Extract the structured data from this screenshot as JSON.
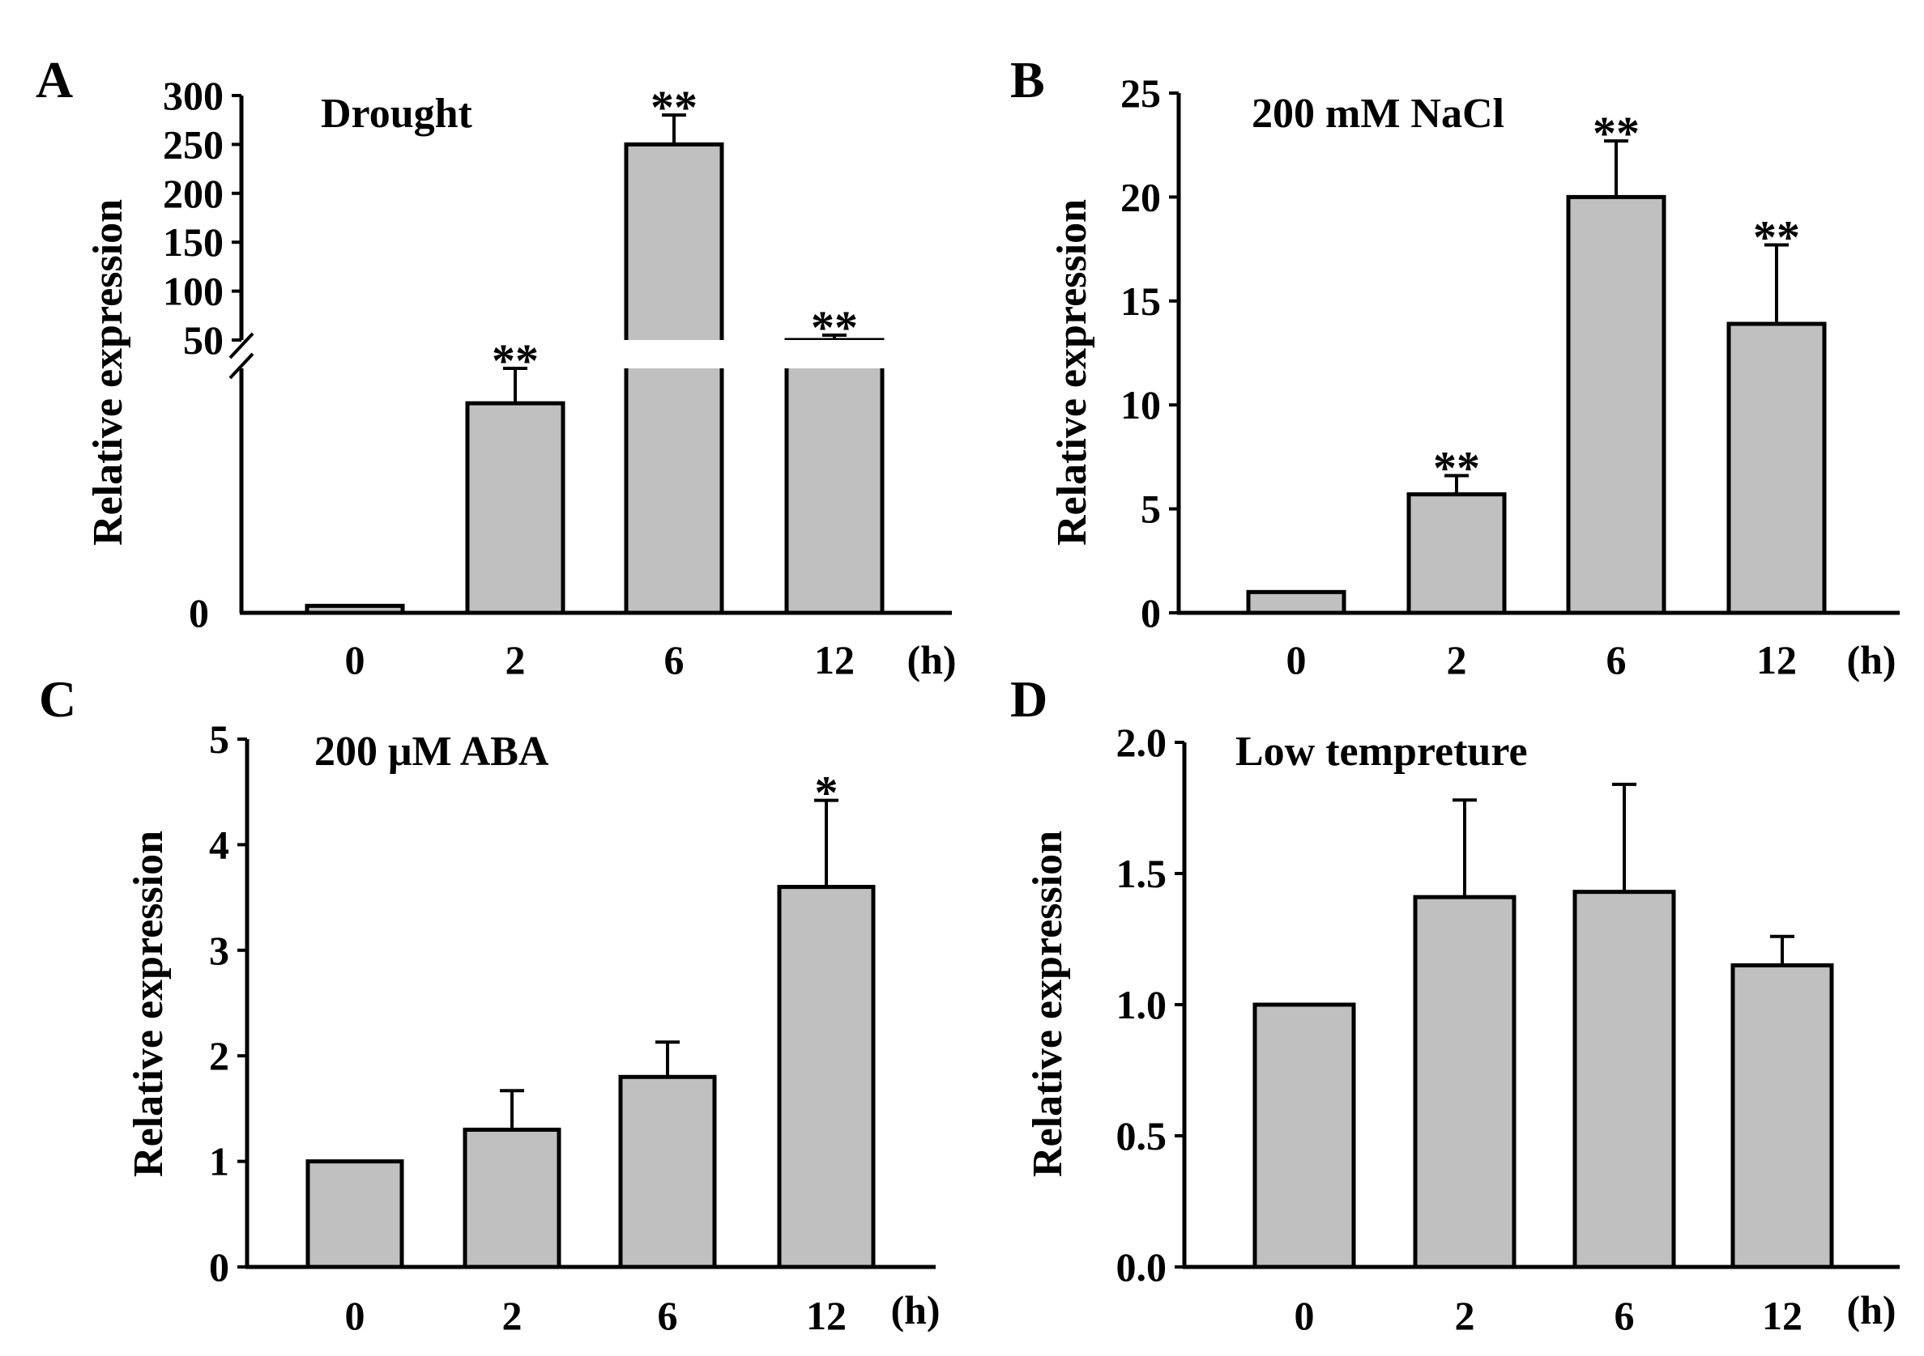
{
  "chart_data": [
    {
      "panel": "A",
      "type": "bar",
      "title": "Drought",
      "xlabel": "(h)",
      "ylabel": "Relative expression",
      "categories": [
        "0",
        "2",
        "6",
        "12"
      ],
      "values": [
        1,
        30,
        250,
        50
      ],
      "errors": [
        0,
        5,
        30,
        5
      ],
      "significance": [
        "",
        "**",
        "**",
        "**"
      ],
      "axis_break": true,
      "ylim_lower": [
        0,
        35
      ],
      "ylim_upper": [
        50,
        300
      ],
      "yticks_lower": [
        0
      ],
      "yticks_upper": [
        50,
        100,
        150,
        200,
        250,
        300
      ],
      "ytick_labels_lower": [
        "0"
      ],
      "ytick_labels_upper": [
        "50",
        "100",
        "150",
        "200",
        "250",
        "300"
      ]
    },
    {
      "panel": "B",
      "type": "bar",
      "title": "200 mM NaCl",
      "xlabel": "(h)",
      "ylabel": "Relative expression",
      "categories": [
        "0",
        "2",
        "6",
        "12"
      ],
      "values": [
        1,
        5.7,
        20,
        13.9
      ],
      "errors": [
        0,
        0.9,
        2.7,
        3.8
      ],
      "significance": [
        "",
        "**",
        "**",
        "**"
      ],
      "ylim": [
        0,
        25
      ],
      "yticks": [
        0,
        5,
        10,
        15,
        20,
        25
      ],
      "ytick_labels": [
        "0",
        "5",
        "10",
        "15",
        "20",
        "25"
      ]
    },
    {
      "panel": "C",
      "type": "bar",
      "title": "200 μM ABA",
      "xlabel": "(h)",
      "ylabel": "Relative expression",
      "categories": [
        "0",
        "2",
        "6",
        "12"
      ],
      "values": [
        1,
        1.3,
        1.8,
        3.6
      ],
      "errors": [
        0,
        0.37,
        0.33,
        0.82
      ],
      "significance": [
        "",
        "",
        "",
        "*"
      ],
      "ylim": [
        0,
        5
      ],
      "yticks": [
        0,
        1,
        2,
        3,
        4,
        5
      ],
      "ytick_labels": [
        "0",
        "1",
        "2",
        "3",
        "4",
        "5"
      ]
    },
    {
      "panel": "D",
      "type": "bar",
      "title": "Low tempreture",
      "xlabel": "(h)",
      "ylabel": "Relative expression",
      "categories": [
        "0",
        "2",
        "6",
        "12"
      ],
      "values": [
        1.0,
        1.41,
        1.43,
        1.15
      ],
      "errors": [
        0,
        0.37,
        0.41,
        0.11
      ],
      "significance": [
        "",
        "",
        "",
        ""
      ],
      "ylim": [
        0,
        2.0
      ],
      "yticks": [
        0,
        0.5,
        1.0,
        1.5,
        2.0
      ],
      "ytick_labels": [
        "0.0",
        "0.5",
        "1.0",
        "1.5",
        "2.0"
      ]
    }
  ]
}
